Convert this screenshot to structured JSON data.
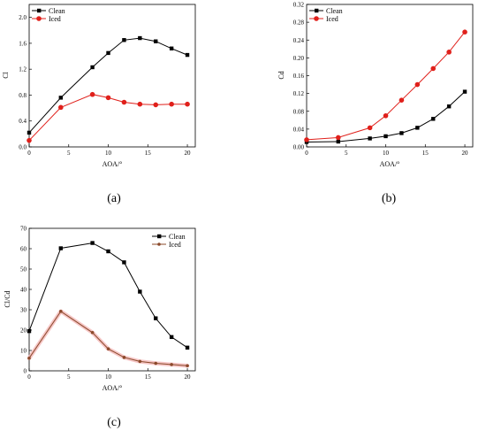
{
  "chart_data": [
    {
      "type": "line",
      "panel_label": "(a)",
      "xlabel": "AOA/°",
      "ylabel": "Cl",
      "xlim": [
        0,
        21
      ],
      "ylim": [
        0,
        2.2
      ],
      "xticks": [
        0,
        5,
        10,
        15,
        20
      ],
      "yticks": [
        0.0,
        0.4,
        0.8,
        1.2,
        1.6,
        2.0
      ],
      "ytick_decimals": 1,
      "legend_position": "top-left",
      "series": [
        {
          "name": "Clean",
          "color": "#000000",
          "marker": "square",
          "x": [
            0,
            4,
            8,
            10,
            12,
            14,
            16,
            18,
            20
          ],
          "y": [
            0.22,
            0.76,
            1.23,
            1.45,
            1.65,
            1.68,
            1.63,
            1.52,
            1.42
          ]
        },
        {
          "name": "Iced",
          "color": "#e0201b",
          "marker": "circle",
          "x": [
            0,
            4,
            8,
            10,
            12,
            14,
            16,
            18,
            20
          ],
          "y": [
            0.1,
            0.61,
            0.81,
            0.76,
            0.69,
            0.66,
            0.65,
            0.66,
            0.66
          ]
        }
      ]
    },
    {
      "type": "line",
      "panel_label": "(b)",
      "xlabel": "AOA/°",
      "ylabel": "Cd",
      "xlim": [
        0,
        21
      ],
      "ylim": [
        0,
        0.32
      ],
      "xticks": [
        0,
        5,
        10,
        15,
        20
      ],
      "yticks": [
        0.0,
        0.04,
        0.08,
        0.12,
        0.16,
        0.2,
        0.24,
        0.28,
        0.32
      ],
      "ytick_decimals": 2,
      "legend_position": "top-left",
      "series": [
        {
          "name": "Clean",
          "color": "#000000",
          "marker": "square",
          "x": [
            0,
            4,
            8,
            10,
            12,
            14,
            16,
            18,
            20
          ],
          "y": [
            0.011,
            0.012,
            0.019,
            0.024,
            0.031,
            0.043,
            0.063,
            0.091,
            0.124
          ]
        },
        {
          "name": "Iced",
          "color": "#e0201b",
          "marker": "circle",
          "x": [
            0,
            4,
            8,
            10,
            12,
            14,
            16,
            18,
            20
          ],
          "y": [
            0.016,
            0.021,
            0.043,
            0.07,
            0.105,
            0.14,
            0.176,
            0.213,
            0.258
          ]
        }
      ]
    },
    {
      "type": "line",
      "panel_label": "(c)",
      "xlabel": "AOA/°",
      "ylabel": "Cl/Cd",
      "xlim": [
        0,
        21
      ],
      "ylim": [
        0,
        70
      ],
      "xticks": [
        0,
        5,
        10,
        15,
        20
      ],
      "yticks": [
        0,
        10,
        20,
        30,
        40,
        50,
        60,
        70
      ],
      "ytick_decimals": 0,
      "legend_position": "top-right",
      "series": [
        {
          "name": "Clean",
          "color": "#000000",
          "marker": "square",
          "x": [
            0,
            4,
            8,
            10,
            12,
            14,
            16,
            18,
            20
          ],
          "y": [
            19.5,
            60.2,
            62.8,
            58.7,
            53.3,
            38.9,
            25.8,
            16.6,
            11.4
          ]
        },
        {
          "name": "Iced",
          "color": "#8b4a2b",
          "marker": "circle-small",
          "x": [
            0,
            4,
            8,
            10,
            12,
            14,
            16,
            18,
            20
          ],
          "y": [
            6.2,
            29.2,
            18.8,
            10.8,
            6.6,
            4.6,
            3.7,
            3.1,
            2.5
          ]
        }
      ]
    }
  ]
}
